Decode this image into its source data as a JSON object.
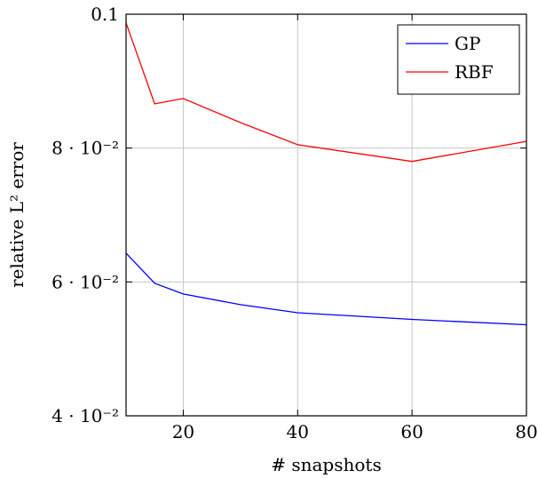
{
  "chart_data": {
    "type": "line",
    "xlabel": "# snapshots",
    "ylabel": "relative L² error",
    "xlim": [
      10,
      80
    ],
    "ylim": [
      0.04,
      0.1
    ],
    "grid": true,
    "legend_position": "top-right",
    "x_ticks": [
      {
        "value": 20,
        "label": "20"
      },
      {
        "value": 40,
        "label": "40"
      },
      {
        "value": 60,
        "label": "60"
      },
      {
        "value": 80,
        "label": "80"
      }
    ],
    "y_ticks": [
      {
        "value": 0.04,
        "label": "4 · 10⁻²"
      },
      {
        "value": 0.06,
        "label": "6 · 10⁻²"
      },
      {
        "value": 0.08,
        "label": "8 · 10⁻²"
      },
      {
        "value": 0.1,
        "label": "0.1"
      }
    ],
    "series": [
      {
        "name": "GP",
        "color": "#0000ff",
        "x": [
          10,
          15,
          20,
          30,
          40,
          60,
          80
        ],
        "values": [
          0.0643,
          0.0598,
          0.0582,
          0.0566,
          0.0554,
          0.0544,
          0.0536
        ]
      },
      {
        "name": "RBF",
        "color": "#ff0000",
        "x": [
          10,
          15,
          20,
          30,
          40,
          60,
          80
        ],
        "values": [
          0.0987,
          0.0866,
          0.0874,
          0.0838,
          0.0805,
          0.078,
          0.081
        ]
      }
    ]
  }
}
